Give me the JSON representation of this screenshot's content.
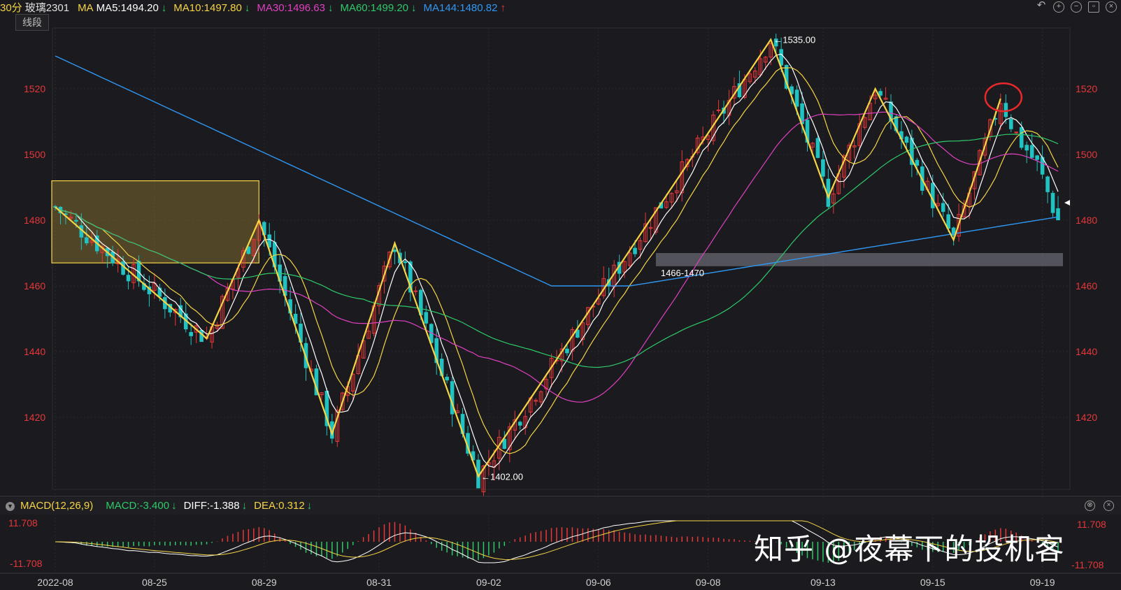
{
  "header": {
    "period": "30分",
    "symbol": "玻璃2301",
    "indicator_group": "MA",
    "ma": [
      {
        "label": "MA5:1494.20",
        "color": "#ffffff",
        "trend": "down"
      },
      {
        "label": "MA10:1497.80",
        "color": "#f5d445",
        "trend": "down"
      },
      {
        "label": "MA30:1496.63",
        "color": "#e040c0",
        "trend": "down"
      },
      {
        "label": "MA60:1499.20",
        "color": "#2ec96a",
        "trend": "down"
      },
      {
        "label": "MA144:1480.82",
        "color": "#2f97f2",
        "trend": "up"
      }
    ],
    "overlay_tag": "线段",
    "icons": [
      "undo-icon",
      "zoom-in-icon",
      "zoom-out-icon",
      "window-icon",
      "close-icon"
    ]
  },
  "macd": {
    "label": "MACD(12,26,9)",
    "macd_value": "MACD:-3.400",
    "diff_value": "DIFF:-1.388",
    "dea_value": "DEA:0.312",
    "top_axis": "11.708",
    "bottom_axis": "-11.708",
    "icons": [
      "settings-icon",
      "close-icon"
    ]
  },
  "watermark": "知乎 @夜幕下的投机客",
  "colors": {
    "background": "#1b1b1f",
    "up_candle": "#e8383a",
    "down_candle": "#21c2c2",
    "segment": "#f5d445",
    "axis_text": "#e5363a"
  },
  "chart_data": {
    "type": "candlestick",
    "y_ticks": [
      1420,
      1440,
      1460,
      1480,
      1500,
      1520
    ],
    "ylim": [
      1398,
      1540
    ],
    "x_tick_labels": [
      "2022-08",
      "08-25",
      "08-29",
      "08-31",
      "09-02",
      "09-06",
      "09-08",
      "09-13",
      "09-15",
      "09-19"
    ],
    "segment_points": [
      {
        "i": 0,
        "y": 1484
      },
      {
        "i": 29,
        "y": 1444
      },
      {
        "i": 39,
        "y": 1480
      },
      {
        "i": 53,
        "y": 1415
      },
      {
        "i": 65,
        "y": 1473
      },
      {
        "i": 81,
        "y": 1402
      },
      {
        "i": 137,
        "y": 1535
      },
      {
        "i": 148,
        "y": 1487
      },
      {
        "i": 157,
        "y": 1520
      },
      {
        "i": 172,
        "y": 1474
      },
      {
        "i": 181,
        "y": 1517
      }
    ],
    "annotations": [
      {
        "text": "←1535.00",
        "i": 137,
        "y": 1535
      },
      {
        "text": "←1402.00",
        "i": 81,
        "y": 1402
      },
      {
        "text": "1466-1470",
        "i": 117,
        "y": 1464
      }
    ],
    "zone_box": {
      "i_start": 0,
      "i_end": 39,
      "low": 1467,
      "high": 1492
    },
    "support_band": {
      "i_start": 115,
      "low": 1466,
      "high": 1470
    },
    "last_price": 1480,
    "macd_range": [
      -11.708,
      11.708
    ]
  }
}
